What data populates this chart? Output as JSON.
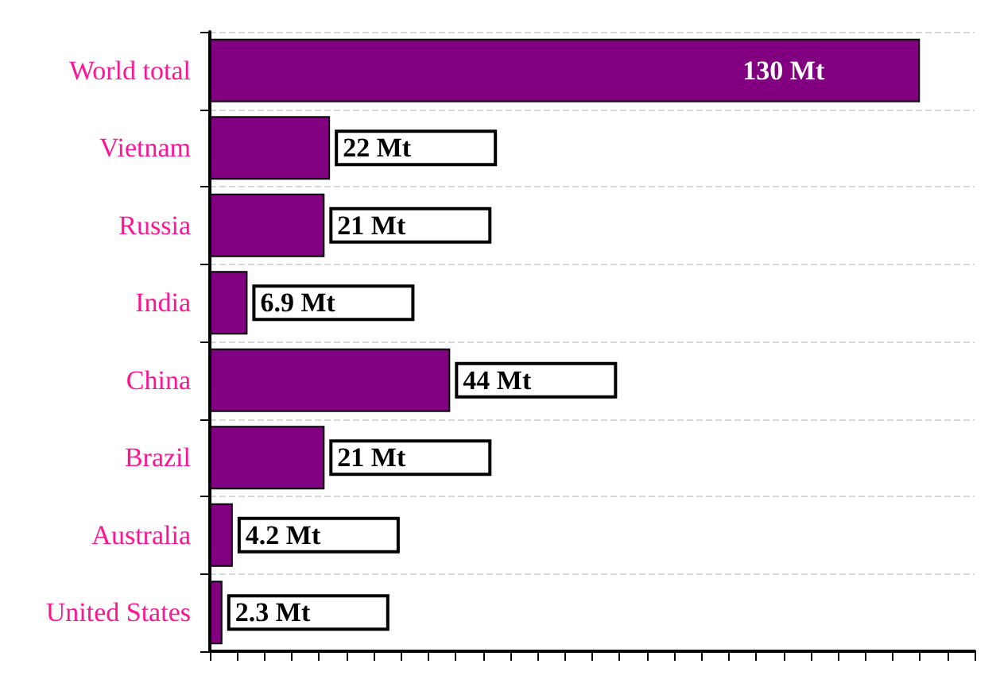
{
  "chart_data": {
    "type": "bar",
    "orientation": "horizontal",
    "categories": [
      "World total",
      "Vietnam",
      "Russia",
      "India",
      "China",
      "Brazil",
      "Australia",
      "United States"
    ],
    "values": [
      130,
      22,
      21,
      6.9,
      44,
      21,
      4.2,
      2.3
    ],
    "value_labels": [
      "130 Mt",
      "22 Mt",
      "21 Mt",
      "6.9 Mt",
      "44 Mt",
      "21 Mt",
      "4.2 Mt",
      "2.3 Mt"
    ],
    "color": "#800080",
    "xlim": [
      0,
      140
    ],
    "xticks": [
      0,
      5,
      10,
      15,
      20,
      25,
      30,
      35,
      40,
      45,
      50,
      55,
      60,
      65,
      70,
      75,
      80,
      85,
      90,
      95,
      100,
      105,
      110,
      115,
      120,
      125,
      130,
      135,
      140
    ],
    "tick_labels": "y",
    "grid": "y"
  }
}
